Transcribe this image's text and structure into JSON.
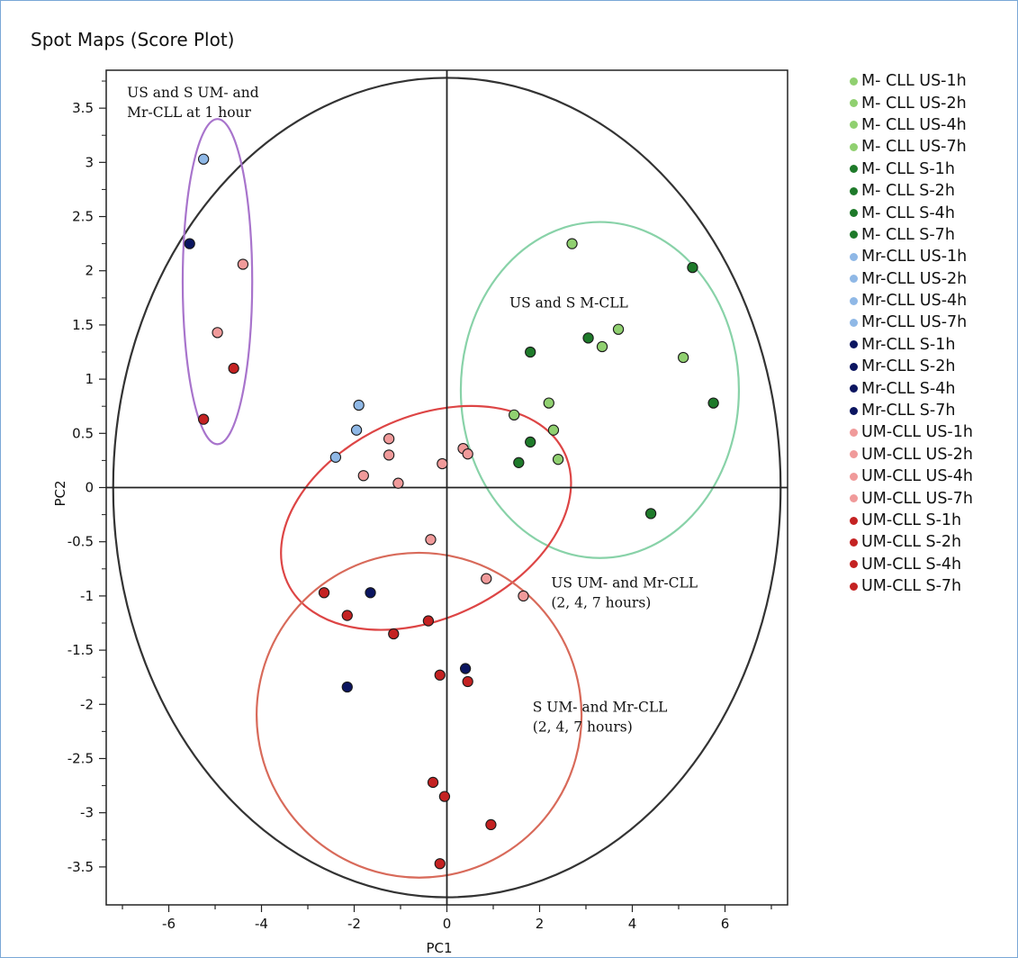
{
  "panel": {
    "title": "Spot Maps (Score Plot)"
  },
  "chart_data": {
    "type": "scatter",
    "title": "Spot Maps (Score Plot)",
    "xlabel": "PC1",
    "ylabel": "PC2",
    "xlim": [
      -7.35,
      7.35
    ],
    "ylim": [
      -3.85,
      3.85
    ],
    "x_ticks": [
      "-6",
      "-4",
      "-2",
      "0",
      "2",
      "4",
      "6"
    ],
    "x_tick_values": [
      -6,
      -4,
      -2,
      0,
      2,
      4,
      6
    ],
    "y_ticks": [
      "3.5",
      "3",
      "2.5",
      "2",
      "1.5",
      "1",
      "0.5",
      "0",
      "-0.5",
      "-1",
      "-1.5",
      "-2",
      "-2.5",
      "-3",
      "-3.5"
    ],
    "y_tick_values": [
      3.5,
      3,
      2.5,
      2,
      1.5,
      1,
      0.5,
      0,
      -0.5,
      -1,
      -1.5,
      -2,
      -2.5,
      -3,
      -3.5
    ],
    "group_colors": {
      "M-CLL US": "#90d070",
      "M-CLL S": "#1e7a2a",
      "Mr-CLL US": "#8fb8e6",
      "Mr-CLL S": "#0b1560",
      "UM-CLL US": "#f09a9a",
      "UM-CLL S": "#c42222"
    },
    "legend": [
      {
        "label": "M- CLL US-1h",
        "group": "M-CLL US"
      },
      {
        "label": "M- CLL US-2h",
        "group": "M-CLL US"
      },
      {
        "label": "M- CLL US-4h",
        "group": "M-CLL US"
      },
      {
        "label": "M- CLL US-7h",
        "group": "M-CLL US"
      },
      {
        "label": "M- CLL S-1h",
        "group": "M-CLL S"
      },
      {
        "label": "M- CLL S-2h",
        "group": "M-CLL S"
      },
      {
        "label": "M- CLL S-4h",
        "group": "M-CLL S"
      },
      {
        "label": "M- CLL S-7h",
        "group": "M-CLL S"
      },
      {
        "label": "Mr-CLL US-1h",
        "group": "Mr-CLL US"
      },
      {
        "label": "Mr-CLL US-2h",
        "group": "Mr-CLL US"
      },
      {
        "label": "Mr-CLL US-4h",
        "group": "Mr-CLL US"
      },
      {
        "label": "Mr-CLL US-7h",
        "group": "Mr-CLL US"
      },
      {
        "label": "Mr-CLL S-1h",
        "group": "Mr-CLL S"
      },
      {
        "label": "Mr-CLL S-2h",
        "group": "Mr-CLL S"
      },
      {
        "label": "Mr-CLL S-4h",
        "group": "Mr-CLL S"
      },
      {
        "label": "Mr-CLL S-7h",
        "group": "Mr-CLL S"
      },
      {
        "label": "UM-CLL US-1h",
        "group": "UM-CLL US"
      },
      {
        "label": "UM-CLL US-2h",
        "group": "UM-CLL US"
      },
      {
        "label": "UM-CLL US-4h",
        "group": "UM-CLL US"
      },
      {
        "label": "UM-CLL US-7h",
        "group": "UM-CLL US"
      },
      {
        "label": "UM-CLL S-1h",
        "group": "UM-CLL S"
      },
      {
        "label": "UM-CLL S-2h",
        "group": "UM-CLL S"
      },
      {
        "label": "UM-CLL S-4h",
        "group": "UM-CLL S"
      },
      {
        "label": "UM-CLL S-7h",
        "group": "UM-CLL S"
      }
    ],
    "points": [
      {
        "group": "Mr-CLL US",
        "x": -5.25,
        "y": 3.03
      },
      {
        "group": "Mr-CLL S",
        "x": -5.55,
        "y": 2.25
      },
      {
        "group": "UM-CLL US",
        "x": -4.4,
        "y": 2.06
      },
      {
        "group": "UM-CLL US",
        "x": -4.95,
        "y": 1.43
      },
      {
        "group": "UM-CLL S",
        "x": -4.6,
        "y": 1.1
      },
      {
        "group": "UM-CLL S",
        "x": -5.25,
        "y": 0.63
      },
      {
        "group": "M-CLL US",
        "x": 2.7,
        "y": 2.25
      },
      {
        "group": "M-CLL S",
        "x": 5.3,
        "y": 2.03
      },
      {
        "group": "M-CLL S",
        "x": 3.05,
        "y": 1.38
      },
      {
        "group": "M-CLL US",
        "x": 3.35,
        "y": 1.3
      },
      {
        "group": "M-CLL US",
        "x": 3.7,
        "y": 1.46
      },
      {
        "group": "M-CLL S",
        "x": 1.8,
        "y": 1.25
      },
      {
        "group": "M-CLL US",
        "x": 5.1,
        "y": 1.2
      },
      {
        "group": "M-CLL S",
        "x": 5.75,
        "y": 0.78
      },
      {
        "group": "M-CLL US",
        "x": 2.2,
        "y": 0.78
      },
      {
        "group": "M-CLL US",
        "x": 1.45,
        "y": 0.67
      },
      {
        "group": "M-CLL US",
        "x": 2.3,
        "y": 0.53
      },
      {
        "group": "M-CLL S",
        "x": 1.8,
        "y": 0.42
      },
      {
        "group": "M-CLL S",
        "x": 1.55,
        "y": 0.23
      },
      {
        "group": "M-CLL US",
        "x": 2.4,
        "y": 0.26
      },
      {
        "group": "M-CLL S",
        "x": 4.4,
        "y": -0.24
      },
      {
        "group": "Mr-CLL US",
        "x": -1.9,
        "y": 0.76
      },
      {
        "group": "Mr-CLL US",
        "x": -1.95,
        "y": 0.53
      },
      {
        "group": "Mr-CLL US",
        "x": -2.4,
        "y": 0.28
      },
      {
        "group": "UM-CLL US",
        "x": -1.25,
        "y": 0.45
      },
      {
        "group": "UM-CLL US",
        "x": -1.25,
        "y": 0.3
      },
      {
        "group": "UM-CLL US",
        "x": -1.8,
        "y": 0.11
      },
      {
        "group": "UM-CLL US",
        "x": -1.05,
        "y": 0.04
      },
      {
        "group": "UM-CLL US",
        "x": -0.1,
        "y": 0.22
      },
      {
        "group": "UM-CLL US",
        "x": 0.35,
        "y": 0.36
      },
      {
        "group": "UM-CLL US",
        "x": 0.45,
        "y": 0.31
      },
      {
        "group": "UM-CLL US",
        "x": -0.35,
        "y": -0.48
      },
      {
        "group": "UM-CLL US",
        "x": 0.85,
        "y": -0.84
      },
      {
        "group": "UM-CLL US",
        "x": 1.65,
        "y": -1.0
      },
      {
        "group": "UM-CLL S",
        "x": -2.65,
        "y": -0.97
      },
      {
        "group": "Mr-CLL S",
        "x": -1.65,
        "y": -0.97
      },
      {
        "group": "UM-CLL S",
        "x": -2.15,
        "y": -1.18
      },
      {
        "group": "UM-CLL S",
        "x": -1.15,
        "y": -1.35
      },
      {
        "group": "UM-CLL S",
        "x": -0.4,
        "y": -1.23
      },
      {
        "group": "Mr-CLL S",
        "x": 0.4,
        "y": -1.67
      },
      {
        "group": "UM-CLL S",
        "x": -0.15,
        "y": -1.73
      },
      {
        "group": "UM-CLL S",
        "x": 0.45,
        "y": -1.79
      },
      {
        "group": "Mr-CLL S",
        "x": -2.15,
        "y": -1.84
      },
      {
        "group": "UM-CLL S",
        "x": -0.3,
        "y": -2.72
      },
      {
        "group": "UM-CLL S",
        "x": -0.05,
        "y": -2.85
      },
      {
        "group": "UM-CLL S",
        "x": 0.95,
        "y": -3.11
      },
      {
        "group": "UM-CLL S",
        "x": -0.15,
        "y": -3.47
      }
    ],
    "annotations": [
      {
        "lines": [
          "US and S UM- and",
          "Mr-CLL at 1 hour"
        ],
        "x": -6.9,
        "y": 3.6
      },
      {
        "lines": [
          "US and S M-CLL"
        ],
        "x": 1.35,
        "y": 1.66
      },
      {
        "lines": [
          "US UM- and Mr-CLL",
          "(2, 4, 7 hours)"
        ],
        "x": 2.25,
        "y": -0.92
      },
      {
        "lines": [
          "S UM- and Mr-CLL",
          "(2, 4, 7 hours)"
        ],
        "x": 1.85,
        "y": -2.07
      }
    ],
    "ellipses": [
      {
        "name": "hotelling-t2-ellipse",
        "color": "#333333",
        "cx": 0,
        "cy": 0,
        "rx": 7.2,
        "ry": 3.78,
        "angle": 0
      },
      {
        "name": "purple-ellipse",
        "color": "#a874cc",
        "cx": -4.95,
        "cy": 1.9,
        "rx": 0.75,
        "ry": 1.5,
        "angle": 0
      },
      {
        "name": "green-ellipse",
        "color": "#88d2a8",
        "cx": 3.3,
        "cy": 0.9,
        "rx": 3.0,
        "ry": 1.55,
        "angle": 0
      },
      {
        "name": "pink-ellipse",
        "color": "#dd4545",
        "cx": -0.45,
        "cy": -0.28,
        "rx": 3.3,
        "ry": 0.93,
        "angle": -25
      },
      {
        "name": "red-ellipse",
        "color": "#d86a5a",
        "cx": -0.6,
        "cy": -2.1,
        "rx": 3.5,
        "ry": 1.5,
        "angle": -53
      }
    ]
  }
}
